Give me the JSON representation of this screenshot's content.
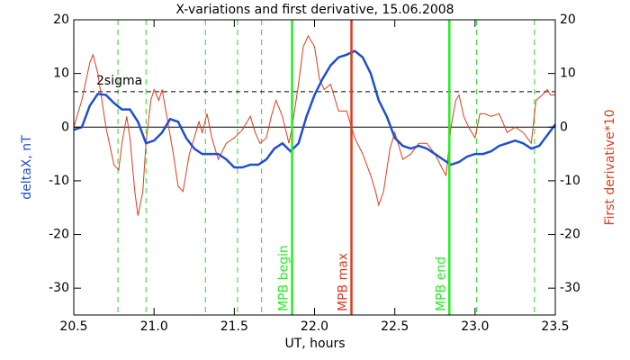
{
  "chart_data": {
    "type": "line",
    "title": "X-variations and first derivative, 15.06.2008",
    "xlabel": "UT, hours",
    "ylabel": "deltaX, nT",
    "y2label": "First derivative*10",
    "ylabel_color": "#1f4fd0",
    "y2label_color": "#e03a1a",
    "xlim": [
      20.5,
      23.5
    ],
    "xticks": [
      20.5,
      {
        "value": 21,
        "label": "21.0"
      },
      21.5,
      {
        "value": 22,
        "label": "22.0"
      },
      22.5,
      {
        "value": 23,
        "label": "23.0"
      },
      23.5
    ],
    "ylim": [
      -35,
      20
    ],
    "yticks": [
      20,
      10,
      0,
      -10,
      -20,
      -30
    ],
    "y2lim": [
      -35,
      20
    ],
    "y2ticks": [
      20,
      10,
      0,
      -10,
      -20,
      -30
    ],
    "series": [
      {
        "color": "#e03a1a",
        "axis": "y2",
        "x": [
          20.5,
          20.55,
          20.6,
          20.62,
          20.65,
          20.7,
          20.75,
          20.78,
          20.8,
          20.83,
          20.85,
          20.88,
          20.9,
          20.93,
          20.95,
          20.98,
          21.0,
          21.03,
          21.05,
          21.08,
          21.12,
          21.15,
          21.18,
          21.22,
          21.25,
          21.28,
          21.3,
          21.33,
          21.36,
          21.4,
          21.45,
          21.5,
          21.55,
          21.6,
          21.63,
          21.66,
          21.7,
          21.73,
          21.76,
          21.8,
          21.84,
          21.86,
          21.9,
          21.93,
          21.96,
          22.0,
          22.03,
          22.06,
          22.1,
          22.15,
          22.2,
          22.25,
          22.3,
          22.35,
          22.38,
          22.4,
          22.43,
          22.47,
          22.5,
          22.55,
          22.6,
          22.65,
          22.7,
          22.75,
          22.8,
          22.82,
          22.85,
          22.88,
          22.9,
          22.93,
          22.96,
          23.0,
          23.03,
          23.06,
          23.1,
          23.15,
          23.2,
          23.25,
          23.3,
          23.35,
          23.38,
          23.42,
          23.45,
          23.47,
          23.5
        ],
        "values": [
          0,
          5,
          12,
          13.5,
          10,
          0,
          -7,
          -8,
          -3,
          2,
          -2,
          -12,
          -16.5,
          -12,
          -3,
          5,
          7,
          5,
          7,
          2,
          -5,
          -11,
          -12,
          -5,
          -2,
          1,
          -1,
          2.5,
          -2,
          -6,
          -3,
          -2,
          -0.5,
          2,
          -1,
          -3,
          -2,
          2,
          5,
          2,
          -3,
          0,
          8,
          15,
          17,
          15,
          9,
          7,
          8,
          3,
          3,
          -2,
          -5,
          -9,
          -12,
          -14.5,
          -12,
          -4,
          -1,
          -6,
          -5,
          -3,
          -3,
          -5,
          -8,
          -9,
          0,
          5,
          6,
          2,
          0,
          -2,
          2.5,
          2.5,
          2,
          2.5,
          -1,
          0,
          -1,
          -3,
          5,
          6,
          7,
          6,
          6
        ]
      },
      {
        "color": "#1f4fd0",
        "axis": "y",
        "x": [
          20.5,
          20.55,
          20.6,
          20.65,
          20.7,
          20.75,
          20.8,
          20.85,
          20.9,
          20.95,
          21.0,
          21.05,
          21.1,
          21.15,
          21.2,
          21.25,
          21.3,
          21.35,
          21.4,
          21.45,
          21.5,
          21.55,
          21.6,
          21.65,
          21.7,
          21.75,
          21.8,
          21.85,
          21.9,
          21.95,
          22.0,
          22.05,
          22.1,
          22.15,
          22.2,
          22.25,
          22.3,
          22.35,
          22.4,
          22.45,
          22.5,
          22.55,
          22.6,
          22.65,
          22.7,
          22.75,
          22.8,
          22.85,
          22.9,
          22.95,
          23.0,
          23.05,
          23.1,
          23.15,
          23.2,
          23.25,
          23.3,
          23.35,
          23.4,
          23.45,
          23.5
        ],
        "values": [
          -0.5,
          0,
          4,
          6.2,
          6,
          4.5,
          3.3,
          3.3,
          1,
          -3,
          -2.5,
          -1,
          1.5,
          1,
          -2,
          -4,
          -5,
          -5,
          -5,
          -6,
          -7.5,
          -7.5,
          -7,
          -7,
          -6,
          -4,
          -3,
          -4.5,
          -3,
          2,
          6,
          9,
          11.5,
          13,
          13.5,
          14.2,
          13,
          10,
          5,
          2,
          -2,
          -3.5,
          -4,
          -3.5,
          -4,
          -5,
          -6,
          -7,
          -6.5,
          -5.5,
          -5,
          -5,
          -4.5,
          -3.5,
          -3,
          -2.5,
          -3,
          -4,
          -3.5,
          -1.5,
          0.5
        ]
      }
    ],
    "reference_lines": [
      {
        "value": 0,
        "style": "solid",
        "color": "#000000"
      },
      {
        "value": 6.6,
        "style": "dashed",
        "color": "#000000",
        "label": "2sigma"
      }
    ],
    "marker_lines": {
      "color": "#22dd22",
      "x": [
        20.775,
        20.95,
        21.32,
        21.52,
        21.67,
        23.01,
        23.37
      ]
    },
    "events": [
      {
        "x": 21.86,
        "label": "MPB begin",
        "color": "#22ee22"
      },
      {
        "x": 22.23,
        "label": "MPB max",
        "color": "#e03a1a"
      },
      {
        "x": 22.84,
        "label": "MPB end",
        "color": "#22ee22"
      }
    ]
  }
}
